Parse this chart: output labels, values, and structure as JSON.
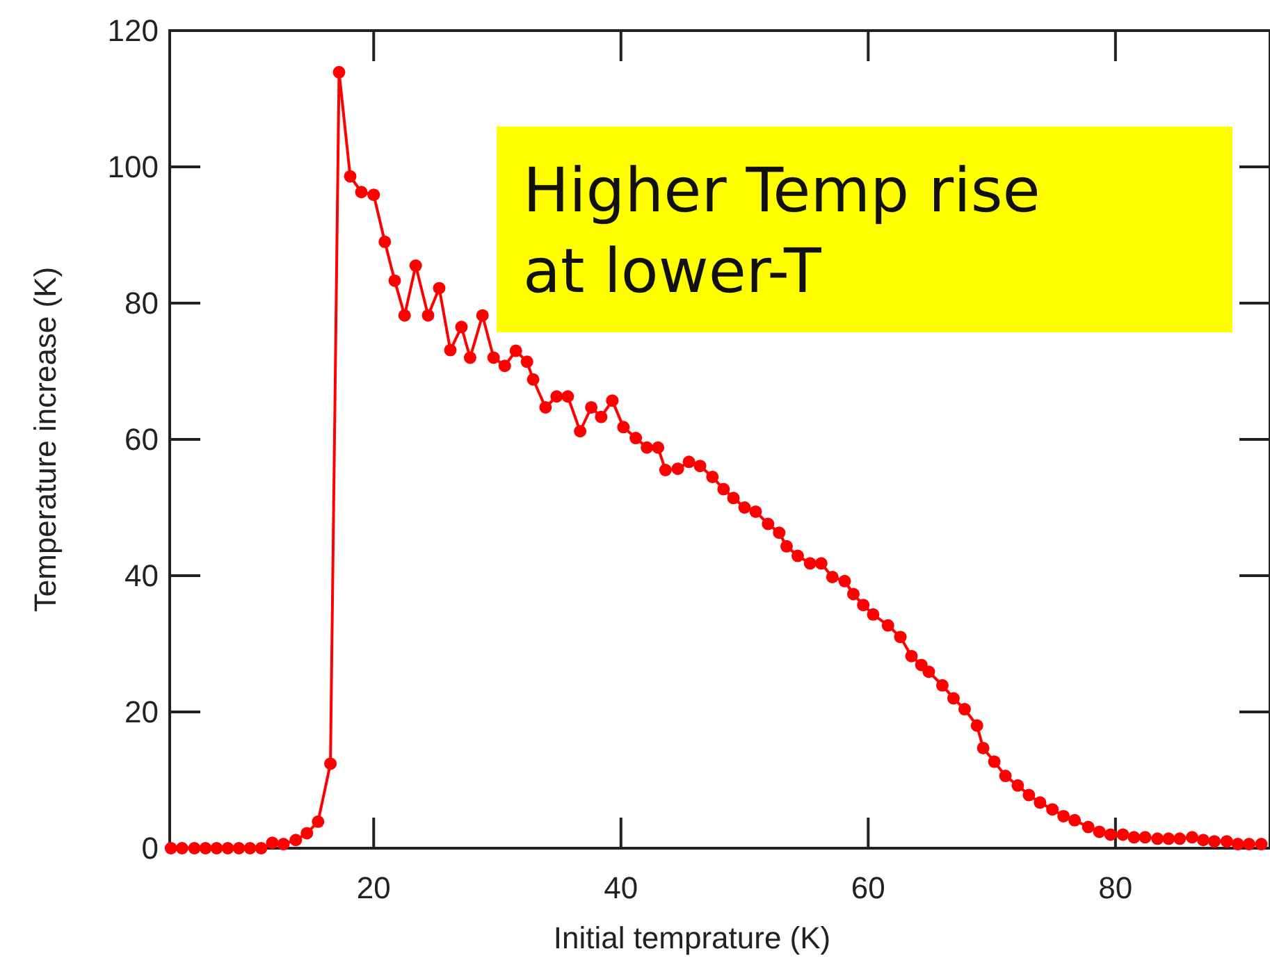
{
  "chart_data": {
    "type": "line",
    "xlabel": "Initial temprature (K)",
    "ylabel": "Temperature increase (K)",
    "xlim": [
      3.5,
      92.5
    ],
    "xticks": [
      20,
      40,
      60,
      80
    ],
    "ylim": [
      0,
      120
    ],
    "yticks": [
      0,
      20,
      40,
      60,
      80,
      100,
      120
    ],
    "grid": false,
    "marker": "circle",
    "line_style": "solid",
    "annotations": [
      "Higher Temp rise at lower-T"
    ],
    "series": [
      {
        "color": "#ff0000",
        "x": [
          3.6,
          4.5,
          5.5,
          6.4,
          7.3,
          8.2,
          9.1,
          10.0,
          10.9,
          11.8,
          12.7,
          13.7,
          14.6,
          15.5,
          16.5,
          17.2,
          18.1,
          19.0,
          20.0,
          20.9,
          21.7,
          22.5,
          23.4,
          24.4,
          25.3,
          26.2,
          27.1,
          27.8,
          28.8,
          29.7,
          30.6,
          31.5,
          32.4,
          32.9,
          33.9,
          34.8,
          35.7,
          36.7,
          37.6,
          38.4,
          39.3,
          40.2,
          41.2,
          42.1,
          43.0,
          43.6,
          44.6,
          45.5,
          46.4,
          47.4,
          48.3,
          49.1,
          50.0,
          50.9,
          51.9,
          52.8,
          53.4,
          54.3,
          55.3,
          56.2,
          57.1,
          58.1,
          58.8,
          59.6,
          60.4,
          61.6,
          62.6,
          63.5,
          64.3,
          64.9,
          66.0,
          66.9,
          67.8,
          68.8,
          69.3,
          70.2,
          71.1,
          72.1,
          73.0,
          73.9,
          74.9,
          75.8,
          76.7,
          77.8,
          78.7,
          79.6,
          80.6,
          81.5,
          82.4,
          83.4,
          84.3,
          85.2,
          86.2,
          87.1,
          88.0,
          89.0,
          89.9,
          90.8,
          91.8
        ],
        "values": [
          0,
          0,
          0,
          0,
          0,
          0,
          0,
          0,
          0,
          0.8,
          0.6,
          1.2,
          2.2,
          3.9,
          12.4,
          113.9,
          98.6,
          96.3,
          95.9,
          89,
          83.3,
          78.2,
          85.5,
          78.2,
          82.2,
          73.1,
          76.5,
          72,
          78.2,
          72,
          70.8,
          73,
          71.4,
          68.8,
          64.7,
          66.3,
          66.3,
          61.2,
          64.7,
          63.3,
          65.7,
          61.8,
          60.2,
          58.8,
          58.8,
          55.5,
          55.7,
          56.7,
          56.1,
          54.5,
          52.7,
          51.4,
          50,
          49.4,
          47.6,
          46.3,
          44.3,
          42.9,
          41.8,
          41.8,
          39.8,
          39.2,
          37.3,
          35.7,
          34.3,
          32.7,
          31,
          28.2,
          26.9,
          25.9,
          23.9,
          22,
          20.4,
          18,
          14.7,
          12.7,
          10.6,
          9.2,
          7.8,
          6.7,
          5.7,
          4.7,
          4.1,
          3.1,
          2.4,
          2,
          2,
          1.6,
          1.6,
          1.4,
          1.4,
          1.4,
          1.6,
          1.2,
          1,
          1,
          0.6,
          0.6,
          0.6
        ]
      }
    ]
  }
}
